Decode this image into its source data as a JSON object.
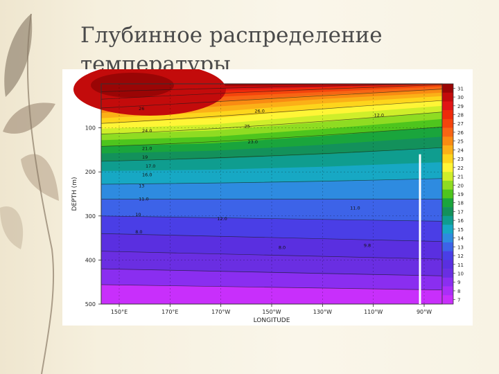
{
  "slide": {
    "title": "Глубинное распределение температуры"
  },
  "chart_data": {
    "type": "heatmap",
    "title": "",
    "xlabel": "LONGITUDE",
    "ylabel": "DEPTH (m)",
    "x_ticks": [
      "150°E",
      "170°E",
      "170°W",
      "150°W",
      "130°W",
      "110°W",
      "90°W"
    ],
    "y_ticks": [
      "100",
      "200",
      "300",
      "400",
      "500"
    ],
    "ylim": [
      0,
      500
    ],
    "colorbar_ticks": [
      "31",
      "30",
      "29",
      "28",
      "27",
      "26",
      "25",
      "24",
      "23",
      "22",
      "21",
      "20",
      "19",
      "18",
      "17",
      "16",
      "15",
      "14",
      "13",
      "12",
      "11",
      "10",
      "9",
      "8",
      "7"
    ],
    "colorbar_colors": [
      "#9a0505",
      "#c30b0b",
      "#e01515",
      "#ee2a0a",
      "#f4440c",
      "#f76514",
      "#f98b12",
      "#fbb017",
      "#fdd51c",
      "#fff536",
      "#cfee2a",
      "#8fdc22",
      "#4ec51d",
      "#1aa53c",
      "#13915b",
      "#0f9d8f",
      "#17a8c4",
      "#2e8be0",
      "#3d63e8",
      "#4a3ee6",
      "#5a2fe0",
      "#6a2ee2",
      "#8a2ef0",
      "#aa2ef7",
      "#c82ffb"
    ],
    "contour_labels": [
      "26",
      "26.0",
      "25",
      "24.0",
      "23.0",
      "21.0",
      "19",
      "17.0",
      "16.0",
      "13",
      "12.0",
      "11.0",
      "11.0",
      "10",
      "8.0",
      "8.0",
      "9.8",
      "12.0"
    ]
  }
}
